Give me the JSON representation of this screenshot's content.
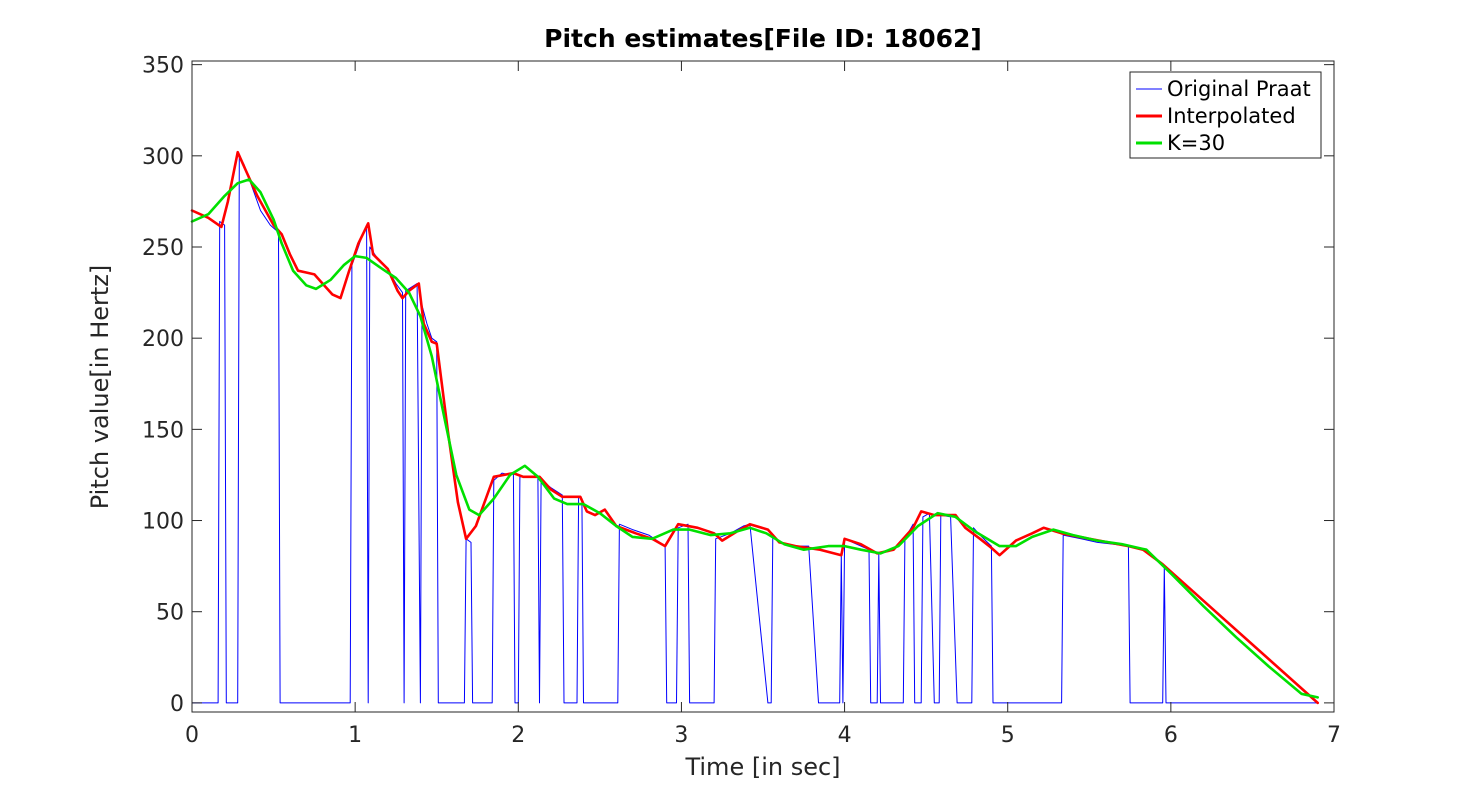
{
  "chart_data": {
    "type": "line",
    "title": "Pitch estimates[File ID: 18062]",
    "xlabel": "Time [in sec]",
    "ylabel": "Pitch value[in Hertz]",
    "xlim": [
      0,
      7
    ],
    "ylim": [
      -5,
      352
    ],
    "xticks": [
      0,
      1,
      2,
      3,
      4,
      5,
      6,
      7
    ],
    "yticks": [
      0,
      50,
      100,
      150,
      200,
      250,
      300,
      350
    ],
    "grid": false,
    "legend_position": "top-right",
    "series": [
      {
        "name": "Original Praat",
        "color": "#0000ff",
        "style": "thin",
        "points": [
          [
            0,
            0
          ],
          [
            0.16,
            0
          ],
          [
            0.17,
            264
          ],
          [
            0.2,
            262
          ],
          [
            0.21,
            0
          ],
          [
            0.28,
            0
          ],
          [
            0.29,
            300
          ],
          [
            0.32,
            295
          ],
          [
            0.36,
            285
          ],
          [
            0.42,
            270
          ],
          [
            0.48,
            262
          ],
          [
            0.53,
            258
          ],
          [
            0.54,
            0
          ],
          [
            0.97,
            0
          ],
          [
            0.98,
            240
          ],
          [
            1.02,
            250
          ],
          [
            1.05,
            258
          ],
          [
            1.07,
            262
          ],
          [
            1.08,
            0
          ],
          [
            1.09,
            250
          ],
          [
            1.15,
            242
          ],
          [
            1.2,
            238
          ],
          [
            1.25,
            230
          ],
          [
            1.29,
            225
          ],
          [
            1.3,
            0
          ],
          [
            1.31,
            226
          ],
          [
            1.38,
            230
          ],
          [
            1.4,
            0
          ],
          [
            1.41,
            218
          ],
          [
            1.44,
            208
          ],
          [
            1.47,
            200
          ],
          [
            1.5,
            198
          ],
          [
            1.51,
            0
          ],
          [
            1.67,
            0
          ],
          [
            1.68,
            90
          ],
          [
            1.71,
            88
          ],
          [
            1.72,
            0
          ],
          [
            1.84,
            0
          ],
          [
            1.85,
            122
          ],
          [
            1.9,
            126
          ],
          [
            1.95,
            125
          ],
          [
            1.97,
            126
          ],
          [
            1.98,
            0
          ],
          [
            2.0,
            0
          ],
          [
            2.01,
            124
          ],
          [
            2.08,
            124
          ],
          [
            2.12,
            124
          ],
          [
            2.13,
            0
          ],
          [
            2.14,
            122
          ],
          [
            2.2,
            118
          ],
          [
            2.27,
            114
          ],
          [
            2.28,
            0
          ],
          [
            2.36,
            0
          ],
          [
            2.37,
            113
          ],
          [
            2.39,
            112
          ],
          [
            2.4,
            0
          ],
          [
            2.61,
            0
          ],
          [
            2.62,
            98
          ],
          [
            2.7,
            95
          ],
          [
            2.8,
            92
          ],
          [
            2.9,
            86
          ],
          [
            2.91,
            0
          ],
          [
            2.97,
            0
          ],
          [
            2.98,
            96
          ],
          [
            3.04,
            98
          ],
          [
            3.05,
            0
          ],
          [
            3.2,
            0
          ],
          [
            3.21,
            90
          ],
          [
            3.3,
            93
          ],
          [
            3.38,
            97
          ],
          [
            3.42,
            98
          ],
          [
            3.53,
            0
          ],
          [
            3.55,
            0
          ],
          [
            3.56,
            92
          ],
          [
            3.6,
            88
          ],
          [
            3.7,
            86
          ],
          [
            3.78,
            86
          ],
          [
            3.84,
            0
          ],
          [
            3.97,
            0
          ],
          [
            3.98,
            82
          ],
          [
            3.99,
            0
          ],
          [
            4.0,
            90
          ],
          [
            4.05,
            88
          ],
          [
            4.15,
            84
          ],
          [
            4.16,
            0
          ],
          [
            4.2,
            0
          ],
          [
            4.21,
            82
          ],
          [
            4.22,
            0
          ],
          [
            4.36,
            0
          ],
          [
            4.37,
            90
          ],
          [
            4.42,
            98
          ],
          [
            4.43,
            0
          ],
          [
            4.47,
            0
          ],
          [
            4.48,
            102
          ],
          [
            4.52,
            104
          ],
          [
            4.55,
            0
          ],
          [
            4.58,
            0
          ],
          [
            4.59,
            103
          ],
          [
            4.65,
            102
          ],
          [
            4.69,
            0
          ],
          [
            4.78,
            0
          ],
          [
            4.79,
            96
          ],
          [
            4.83,
            92
          ],
          [
            4.9,
            86
          ],
          [
            4.91,
            0
          ],
          [
            5.33,
            0
          ],
          [
            5.34,
            92
          ],
          [
            5.45,
            90
          ],
          [
            5.55,
            88
          ],
          [
            5.65,
            87
          ],
          [
            5.74,
            86
          ],
          [
            5.75,
            0
          ],
          [
            5.95,
            0
          ],
          [
            5.96,
            75
          ],
          [
            5.97,
            0
          ],
          [
            6.9,
            0
          ]
        ]
      },
      {
        "name": "Interpolated",
        "color": "#ff0000",
        "style": "thick",
        "points": [
          [
            0,
            270
          ],
          [
            0.1,
            266
          ],
          [
            0.18,
            261
          ],
          [
            0.22,
            275
          ],
          [
            0.28,
            302
          ],
          [
            0.33,
            292
          ],
          [
            0.4,
            278
          ],
          [
            0.5,
            262
          ],
          [
            0.55,
            257
          ],
          [
            0.6,
            246
          ],
          [
            0.65,
            237
          ],
          [
            0.7,
            236
          ],
          [
            0.75,
            235
          ],
          [
            0.8,
            230
          ],
          [
            0.86,
            224
          ],
          [
            0.91,
            222
          ],
          [
            0.96,
            236
          ],
          [
            1.02,
            252
          ],
          [
            1.08,
            263
          ],
          [
            1.11,
            246
          ],
          [
            1.2,
            238
          ],
          [
            1.26,
            226
          ],
          [
            1.29,
            222
          ],
          [
            1.33,
            226
          ],
          [
            1.39,
            230
          ],
          [
            1.42,
            208
          ],
          [
            1.47,
            198
          ],
          [
            1.5,
            197
          ],
          [
            1.57,
            148
          ],
          [
            1.63,
            110
          ],
          [
            1.68,
            90
          ],
          [
            1.74,
            97
          ],
          [
            1.85,
            124
          ],
          [
            1.97,
            126
          ],
          [
            2.03,
            124
          ],
          [
            2.13,
            124
          ],
          [
            2.2,
            117
          ],
          [
            2.27,
            113
          ],
          [
            2.38,
            113
          ],
          [
            2.42,
            105
          ],
          [
            2.47,
            103
          ],
          [
            2.53,
            106
          ],
          [
            2.6,
            97
          ],
          [
            2.72,
            93
          ],
          [
            2.82,
            90
          ],
          [
            2.9,
            86
          ],
          [
            2.98,
            98
          ],
          [
            3.1,
            96
          ],
          [
            3.2,
            93
          ],
          [
            3.25,
            89
          ],
          [
            3.34,
            94
          ],
          [
            3.42,
            98
          ],
          [
            3.53,
            95
          ],
          [
            3.6,
            88
          ],
          [
            3.7,
            86
          ],
          [
            3.85,
            84
          ],
          [
            3.98,
            81
          ],
          [
            4.0,
            90
          ],
          [
            4.1,
            87
          ],
          [
            4.2,
            82
          ],
          [
            4.3,
            84
          ],
          [
            4.42,
            96
          ],
          [
            4.47,
            105
          ],
          [
            4.55,
            103
          ],
          [
            4.68,
            103
          ],
          [
            4.74,
            96
          ],
          [
            4.83,
            90
          ],
          [
            4.9,
            85
          ],
          [
            4.95,
            81
          ],
          [
            5.05,
            89
          ],
          [
            5.15,
            93
          ],
          [
            5.22,
            96
          ],
          [
            5.33,
            93
          ],
          [
            5.5,
            90
          ],
          [
            5.74,
            86
          ],
          [
            5.83,
            84
          ],
          [
            5.95,
            76
          ],
          [
            6.9,
            0
          ]
        ]
      },
      {
        "name": "K=30",
        "color": "#00e000",
        "style": "thick",
        "points": [
          [
            0,
            264
          ],
          [
            0.1,
            268
          ],
          [
            0.2,
            278
          ],
          [
            0.28,
            285
          ],
          [
            0.35,
            287
          ],
          [
            0.42,
            280
          ],
          [
            0.5,
            265
          ],
          [
            0.55,
            252
          ],
          [
            0.62,
            237
          ],
          [
            0.7,
            229
          ],
          [
            0.76,
            227
          ],
          [
            0.85,
            232
          ],
          [
            0.93,
            240
          ],
          [
            1.0,
            245
          ],
          [
            1.07,
            244
          ],
          [
            1.15,
            239
          ],
          [
            1.25,
            233
          ],
          [
            1.33,
            225
          ],
          [
            1.4,
            212
          ],
          [
            1.47,
            190
          ],
          [
            1.55,
            155
          ],
          [
            1.62,
            125
          ],
          [
            1.7,
            106
          ],
          [
            1.76,
            103
          ],
          [
            1.85,
            112
          ],
          [
            1.95,
            125
          ],
          [
            2.04,
            130
          ],
          [
            2.12,
            124
          ],
          [
            2.22,
            112
          ],
          [
            2.3,
            109
          ],
          [
            2.4,
            109
          ],
          [
            2.5,
            104
          ],
          [
            2.6,
            97
          ],
          [
            2.7,
            91
          ],
          [
            2.82,
            90
          ],
          [
            2.95,
            95
          ],
          [
            3.05,
            95
          ],
          [
            3.18,
            92
          ],
          [
            3.3,
            93
          ],
          [
            3.42,
            96
          ],
          [
            3.52,
            93
          ],
          [
            3.63,
            87
          ],
          [
            3.75,
            84
          ],
          [
            3.9,
            86
          ],
          [
            4.0,
            86
          ],
          [
            4.1,
            84
          ],
          [
            4.22,
            82
          ],
          [
            4.33,
            86
          ],
          [
            4.45,
            97
          ],
          [
            4.57,
            104
          ],
          [
            4.68,
            102
          ],
          [
            4.8,
            94
          ],
          [
            4.95,
            86
          ],
          [
            5.05,
            86
          ],
          [
            5.15,
            91
          ],
          [
            5.28,
            95
          ],
          [
            5.4,
            92
          ],
          [
            5.55,
            89
          ],
          [
            5.7,
            87
          ],
          [
            5.85,
            84
          ],
          [
            6.0,
            71
          ],
          [
            6.2,
            53
          ],
          [
            6.4,
            36
          ],
          [
            6.6,
            20
          ],
          [
            6.8,
            5
          ],
          [
            6.9,
            3
          ]
        ]
      }
    ]
  }
}
